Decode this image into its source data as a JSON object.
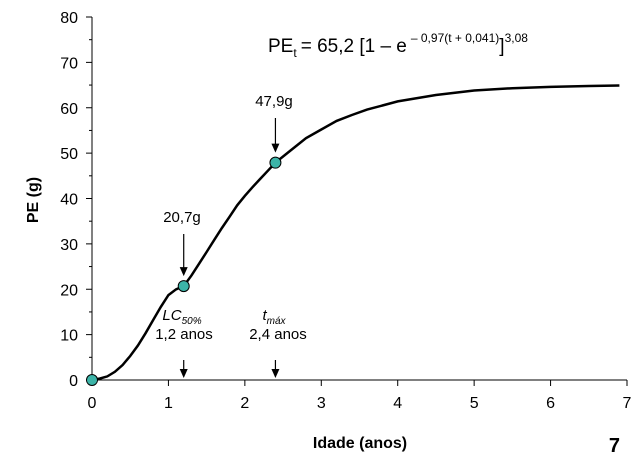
{
  "chart_data": {
    "type": "line",
    "xlabel": "Idade (anos)",
    "ylabel": "PE (g)",
    "xlim": [
      0,
      7
    ],
    "ylim": [
      0,
      80
    ],
    "x_ticks": [
      0,
      1,
      2,
      3,
      4,
      5,
      6,
      7
    ],
    "y_ticks": [
      0,
      10,
      20,
      30,
      40,
      50,
      60,
      70,
      80
    ],
    "grid": false,
    "series": [
      {
        "x": [
          0,
          0.1,
          0.2,
          0.3,
          0.4,
          0.5,
          0.6,
          0.7,
          0.8,
          0.9,
          1.0,
          1.1,
          1.2,
          1.3,
          1.4,
          1.5,
          1.6,
          1.7,
          1.8,
          1.9,
          2.0,
          2.1,
          2.2,
          2.3,
          2.4,
          2.6,
          2.8,
          3.0,
          3.2,
          3.4,
          3.6,
          3.8,
          4.0,
          4.5,
          5.0,
          5.5,
          6.0,
          6.5,
          6.9
        ],
        "y": [
          0,
          0.3,
          0.8,
          1.8,
          3.3,
          5.3,
          7.6,
          10.3,
          13.2,
          16.1,
          18.7,
          20.0,
          20.7,
          23.0,
          25.6,
          28.2,
          30.9,
          33.5,
          36.0,
          38.5,
          40.6,
          42.5,
          44.3,
          46.1,
          47.9,
          50.6,
          53.3,
          55.2,
          57.1,
          58.4,
          59.6,
          60.5,
          61.4,
          62.8,
          63.8,
          64.3,
          64.6,
          64.8,
          64.9
        ]
      }
    ],
    "points": [
      {
        "x": 0,
        "y": 0
      },
      {
        "x": 1.2,
        "y": 20.7
      },
      {
        "x": 2.4,
        "y": 47.9
      }
    ],
    "annotations": [
      {
        "label": "20,7g",
        "x": 1.2,
        "y": 20.7
      },
      {
        "label": "47,9g",
        "x": 2.4,
        "y": 47.9
      },
      {
        "label": "LC",
        "sub": "50%",
        "value": "1,2 anos",
        "x": 1.2
      },
      {
        "label": "t",
        "sub": "máx",
        "value": "2,4 anos",
        "x": 2.4
      }
    ],
    "equation": {
      "lhs": "PE",
      "lhs_sub": "t",
      "rhs": "= 65,2 [1 – e",
      "exponent": "– 0,97(t + 0,041)",
      "close": "]",
      "power": "3,08"
    },
    "colors": {
      "line": "#000000",
      "marker": "#3cb4a8"
    }
  },
  "page_number": "7"
}
